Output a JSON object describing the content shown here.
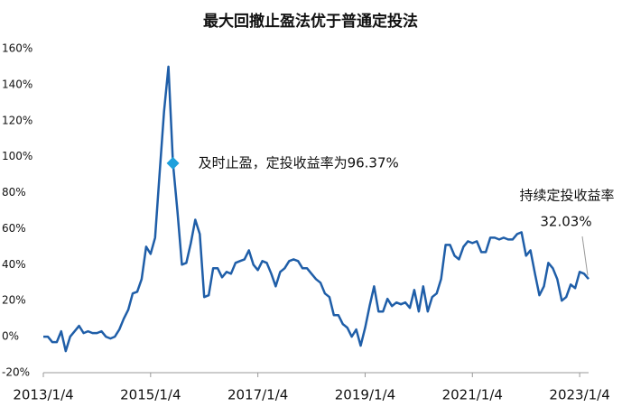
{
  "chart_data": {
    "type": "line",
    "title": "最大回撤止盈法优于普通定投法",
    "categories": [
      "2013/1/4",
      null,
      null,
      null,
      null,
      null,
      null,
      null,
      null,
      null,
      null,
      null,
      null,
      null,
      null,
      null,
      null,
      null,
      null,
      null,
      null,
      null,
      null,
      null,
      "2015/1/4",
      null,
      null,
      null,
      null,
      null,
      null,
      null,
      null,
      null,
      null,
      null,
      null,
      null,
      null,
      null,
      null,
      null,
      null,
      null,
      null,
      null,
      null,
      null,
      "2017/1/4",
      null,
      null,
      null,
      null,
      null,
      null,
      null,
      null,
      null,
      null,
      null,
      null,
      null,
      null,
      null,
      null,
      null,
      null,
      null,
      null,
      null,
      null,
      null,
      "2019/1/4",
      null,
      null,
      null,
      null,
      null,
      null,
      null,
      null,
      null,
      null,
      null,
      null,
      null,
      null,
      null,
      null,
      null,
      null,
      null,
      null,
      null,
      null,
      null,
      "2021/1/4",
      null,
      null,
      null,
      null,
      null,
      null,
      null,
      null,
      null,
      null,
      null,
      null,
      null,
      null,
      null,
      null,
      null,
      null,
      null,
      null,
      null,
      null,
      null,
      "2023/1/4",
      null,
      null
    ],
    "series": [
      {
        "color": "#1f5ea8",
        "values": [
          0,
          0,
          -3,
          -3,
          3,
          -8,
          0,
          3,
          6,
          2,
          3,
          2,
          2,
          3,
          0,
          -1,
          0,
          4,
          10,
          15,
          24,
          25,
          32,
          50,
          46,
          55,
          90,
          125,
          150,
          96.37,
          70,
          40,
          41,
          52,
          65,
          57,
          22,
          23,
          38,
          38,
          33,
          36,
          35,
          41,
          42,
          43,
          48,
          40,
          37,
          42,
          41,
          35,
          28,
          36,
          38,
          42,
          43,
          42,
          38,
          38,
          35,
          32,
          30,
          24,
          22,
          12,
          12,
          7,
          5,
          0,
          4,
          -5,
          5,
          17,
          28,
          14,
          14,
          21,
          17,
          19,
          18,
          19,
          16,
          26,
          14,
          28,
          14,
          22,
          24,
          32,
          51,
          51,
          45,
          43,
          50,
          53,
          52,
          53,
          47,
          47,
          55,
          55,
          54,
          55,
          54,
          54,
          57,
          58,
          45,
          48,
          35,
          23,
          28,
          41,
          38,
          32,
          20,
          22,
          29,
          27,
          36,
          35,
          32.03
        ]
      }
    ],
    "ylim": [
      -20,
      160
    ],
    "yticks": [
      {
        "value": -20,
        "label": "-20%"
      },
      {
        "value": 0,
        "label": "0%"
      },
      {
        "value": 20,
        "label": "20%"
      },
      {
        "value": 40,
        "label": "40%"
      },
      {
        "value": 60,
        "label": "60%"
      },
      {
        "value": 80,
        "label": "80%"
      },
      {
        "value": 100,
        "label": "100%"
      },
      {
        "value": 120,
        "label": "120%"
      },
      {
        "value": 140,
        "label": "140%"
      },
      {
        "value": 160,
        "label": "160%"
      }
    ],
    "annotations": [
      {
        "text": "及时止盈，定投收益率为96.37%",
        "value": 96.37,
        "color": "#1ea0dc"
      },
      {
        "text": "持续定投收益率",
        "value": 32.03,
        "value_label": "32.03%"
      }
    ]
  }
}
